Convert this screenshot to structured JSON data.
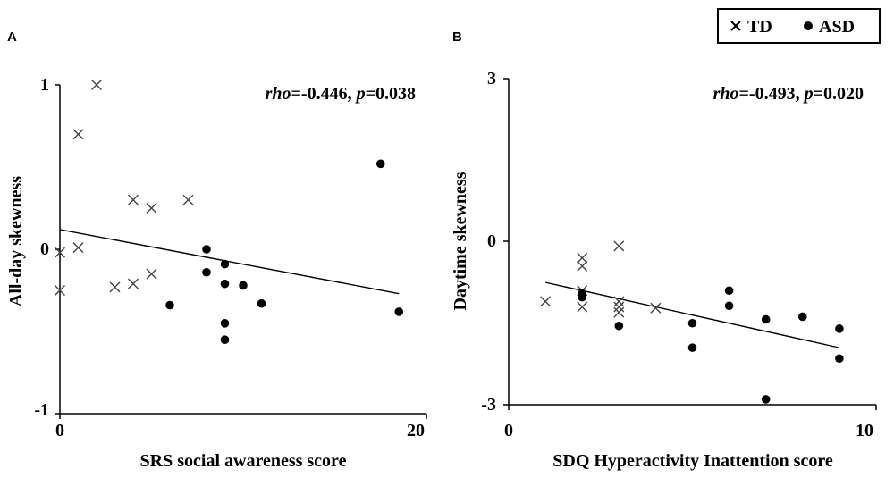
{
  "legend": {
    "td_label": "TD",
    "asd_label": "ASD"
  },
  "chart_data": [
    {
      "type": "scatter",
      "panel": "A",
      "xlabel": "SRS social awareness score",
      "ylabel": "All-day  skewness",
      "xlim": [
        0,
        20
      ],
      "ylim": [
        -1,
        1
      ],
      "xticks": [
        "0",
        "20"
      ],
      "yticks": [
        "1",
        "0",
        "-1"
      ],
      "stat_rho_label": "rho",
      "stat_rho": "=-0.446, ",
      "stat_p_label": "p",
      "stat_p": "=0.038",
      "fit_line": [
        [
          0,
          0.12
        ],
        [
          18.5,
          -0.27
        ]
      ],
      "series": [
        {
          "name": "TD",
          "marker": "x",
          "points": [
            [
              0,
              -0.02
            ],
            [
              0,
              -0.25
            ],
            [
              1,
              0.7
            ],
            [
              1,
              0.01
            ],
            [
              2,
              1.0
            ],
            [
              3,
              -0.23
            ],
            [
              4,
              0.3
            ],
            [
              4,
              -0.21
            ],
            [
              5,
              0.25
            ],
            [
              5,
              -0.15
            ],
            [
              7,
              0.3
            ]
          ]
        },
        {
          "name": "ASD",
          "marker": "dot",
          "points": [
            [
              6,
              -0.34
            ],
            [
              8,
              0.0
            ],
            [
              8,
              -0.14
            ],
            [
              9,
              -0.09
            ],
            [
              9,
              -0.21
            ],
            [
              9,
              -0.45
            ],
            [
              9,
              -0.55
            ],
            [
              10,
              -0.22
            ],
            [
              11,
              -0.33
            ],
            [
              17.5,
              0.52
            ],
            [
              18.5,
              -0.38
            ]
          ]
        }
      ]
    },
    {
      "type": "scatter",
      "panel": "B",
      "xlabel": "SDQ Hyperactivity  Inattention  score",
      "ylabel": "Daytime  skewness",
      "xlim": [
        0,
        10
      ],
      "ylim": [
        -3,
        3
      ],
      "xticks": [
        "0",
        "10"
      ],
      "yticks": [
        "3",
        "0",
        "-3"
      ],
      "stat_rho_label": "rho",
      "stat_rho": "=-0.493, ",
      "stat_p_label": "p",
      "stat_p": "=0.020",
      "fit_line": [
        [
          1,
          -0.75
        ],
        [
          9,
          -1.95
        ]
      ],
      "series": [
        {
          "name": "TD",
          "marker": "x",
          "points": [
            [
              1,
              -1.1
            ],
            [
              2,
              -0.3
            ],
            [
              2,
              -0.45
            ],
            [
              2,
              -0.9
            ],
            [
              2,
              -1.2
            ],
            [
              3,
              -0.08
            ],
            [
              3,
              -1.1
            ],
            [
              3,
              -1.2
            ],
            [
              3,
              -1.3
            ],
            [
              4,
              -1.22
            ]
          ]
        },
        {
          "name": "ASD",
          "marker": "dot",
          "points": [
            [
              2,
              -0.95
            ],
            [
              2,
              -1.02
            ],
            [
              3,
              -1.55
            ],
            [
              5,
              -1.5
            ],
            [
              5,
              -1.95
            ],
            [
              6,
              -0.9
            ],
            [
              6,
              -1.18
            ],
            [
              7,
              -1.43
            ],
            [
              7,
              -2.9
            ],
            [
              8,
              -1.38
            ],
            [
              9,
              -1.6
            ],
            [
              9,
              -2.15
            ]
          ]
        }
      ]
    }
  ]
}
